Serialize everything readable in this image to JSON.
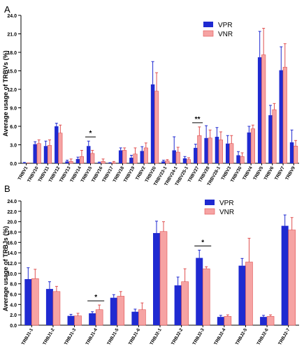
{
  "colors": {
    "vpr": "#1f2ad1",
    "vnr": "#f6a3a3",
    "vnr_err": "#e05050",
    "axis": "#000000"
  },
  "chart_data": [
    {
      "type": "bar",
      "panel_label": "A",
      "ylabel": "Average usage of TRBVs (%)",
      "ylim": [
        0,
        24
      ],
      "yticks": [
        "0.0",
        "3.0",
        "6.0",
        "9.0",
        "12.0",
        "15.0",
        "18.0",
        "21.0",
        "24.0"
      ],
      "legend_position": "top-right",
      "categories": [
        "TRBV1",
        "TRBV10",
        "TRBV11",
        "TRBV12",
        "TRBV13",
        "TRBV14",
        "TRBV15",
        "TRBV16",
        "TRBV17",
        "TRBV18",
        "TRBV19",
        "TRBV2",
        "TRBV20",
        "TRBV23-1",
        "TRBV24-1",
        "TRBV25-1",
        "TRBV27",
        "TRBV28",
        "TRBV28-1",
        "TRBV3",
        "TRBV30",
        "TRBV4",
        "TRBV5",
        "TRBV6",
        "TRBV7",
        "TRBV9"
      ],
      "series": [
        {
          "name": "VPR",
          "values": [
            0.05,
            3.1,
            2.8,
            6.0,
            0.3,
            0.7,
            2.8,
            0.1,
            0.05,
            2.1,
            0.9,
            2.0,
            12.8,
            0.3,
            2.1,
            0.8,
            2.5,
            4.1,
            4.3,
            3.2,
            1.3,
            5.0,
            17.2,
            7.8,
            15.1,
            3.4
          ],
          "errors": [
            0.1,
            0.4,
            0.8,
            0.5,
            0.2,
            0.3,
            0.8,
            0.1,
            0.05,
            0.4,
            0.4,
            0.7,
            3.7,
            0.2,
            2.2,
            0.3,
            0.6,
            2.0,
            1.5,
            1.3,
            0.6,
            1.0,
            4.2,
            1.6,
            3.8,
            2.0
          ]
        },
        {
          "name": "VNR",
          "values": [
            0.0,
            3.2,
            2.9,
            4.9,
            0.3,
            1.1,
            1.6,
            0.3,
            0.1,
            2.1,
            1.5,
            2.5,
            11.7,
            0.4,
            1.8,
            0.6,
            4.5,
            4.1,
            3.8,
            3.2,
            1.1,
            5.6,
            17.6,
            8.7,
            15.6,
            2.8
          ],
          "errors": [
            0.05,
            0.6,
            0.9,
            1.3,
            0.4,
            1.0,
            0.5,
            0.4,
            0.2,
            0.4,
            1.0,
            0.8,
            3.0,
            0.2,
            0.8,
            0.3,
            1.4,
            1.3,
            1.3,
            1.3,
            0.6,
            0.6,
            4.3,
            1.0,
            3.8,
            0.9
          ]
        }
      ],
      "significance": [
        {
          "category": "TRBV15",
          "label": "*"
        },
        {
          "category": "TRBV27",
          "label": "**"
        }
      ]
    },
    {
      "type": "bar",
      "panel_label": "B",
      "ylabel": "Average usage of TRBJs (%)",
      "ylim": [
        0,
        24
      ],
      "yticks": [
        "0.0",
        "2.0",
        "4.0",
        "6.0",
        "8.0",
        "10.0",
        "12.0",
        "14.0",
        "16.0",
        "18.0",
        "20.0",
        "22.0",
        "24.0"
      ],
      "legend_position": "top-right",
      "categories": [
        "TRBJ1-1",
        "TRBJ1-2",
        "TRBJ1-3",
        "TRBJ1-4",
        "TRBJ1-5",
        "TRBJ1-6",
        "TRBJ2-1",
        "TRBJ2-2",
        "TRBJ2-3",
        "TRBJ2-4",
        "TRBJ2-5",
        "TRBJ2-6",
        "TRBJ2-7"
      ],
      "series": [
        {
          "name": "VPR",
          "values": [
            8.9,
            7.0,
            1.8,
            2.3,
            5.3,
            2.6,
            17.8,
            7.7,
            13.0,
            1.6,
            11.5,
            1.6,
            19.2
          ],
          "errors": [
            2.2,
            1.4,
            0.3,
            0.3,
            0.6,
            0.5,
            2.3,
            1.6,
            1.5,
            0.3,
            1.4,
            0.3,
            2.1
          ]
        },
        {
          "name": "VNR",
          "values": [
            9.0,
            6.5,
            1.8,
            3.0,
            5.6,
            3.0,
            18.1,
            8.4,
            10.9,
            1.7,
            12.2,
            1.7,
            18.4
          ],
          "errors": [
            1.8,
            1.0,
            0.5,
            0.9,
            0.9,
            1.3,
            1.9,
            2.5,
            0.4,
            0.3,
            4.6,
            0.3,
            2.4
          ]
        }
      ],
      "significance": [
        {
          "category": "TRBJ1-4",
          "label": "*"
        },
        {
          "category": "TRBJ2-3",
          "label": "*"
        }
      ]
    }
  ]
}
